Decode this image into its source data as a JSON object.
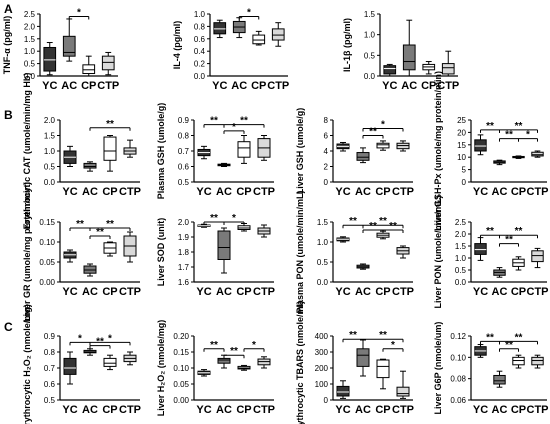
{
  "panel_labels": [
    "A",
    "B",
    "C"
  ],
  "colors": {
    "YC": "#333333",
    "AC": "#7a7a7a",
    "CP": "#ffffff",
    "CTP": "#d9d9d9",
    "outline": "#000000"
  },
  "chart_data": [
    {
      "type": "box",
      "group": "A",
      "ylabel": "TNF-α (pg/ml)",
      "categories": [
        "YC",
        "AC",
        "CP",
        "CTP"
      ],
      "ylim": [
        0,
        2.5
      ],
      "yticks": [
        "0.0",
        "0.5",
        "1.0",
        "1.5",
        "2.0",
        "2.5"
      ],
      "boxes": [
        {
          "min": 0.05,
          "q1": 0.2,
          "median": 0.65,
          "q3": 1.15,
          "max": 1.35
        },
        {
          "min": 0.6,
          "q1": 0.8,
          "median": 0.95,
          "q3": 1.6,
          "max": 2.3
        },
        {
          "min": 0.0,
          "q1": 0.1,
          "median": 0.25,
          "q3": 0.45,
          "max": 0.8
        },
        {
          "min": 0.05,
          "q1": 0.25,
          "median": 0.55,
          "q3": 0.8,
          "max": 0.95
        }
      ],
      "sig": [
        {
          "from": 1,
          "to": 2,
          "label": "*",
          "y": 2.4
        }
      ]
    },
    {
      "type": "box",
      "group": "A",
      "ylabel": "IL-4 (pg/ml)",
      "categories": [
        "YC",
        "AC",
        "CP",
        "CTP"
      ],
      "ylim": [
        0,
        1.0
      ],
      "yticks": [
        "0.0",
        "0.2",
        "0.4",
        "0.6",
        "0.8",
        "1.0"
      ],
      "boxes": [
        {
          "min": 0.62,
          "q1": 0.68,
          "median": 0.76,
          "q3": 0.86,
          "max": 0.9
        },
        {
          "min": 0.62,
          "q1": 0.7,
          "median": 0.79,
          "q3": 0.88,
          "max": 0.94
        },
        {
          "min": 0.5,
          "q1": 0.52,
          "median": 0.58,
          "q3": 0.66,
          "max": 0.72
        },
        {
          "min": 0.48,
          "q1": 0.58,
          "median": 0.66,
          "q3": 0.76,
          "max": 0.86
        }
      ],
      "sig": [
        {
          "from": 1,
          "to": 2,
          "label": "*",
          "y": 0.96
        }
      ]
    },
    {
      "type": "box",
      "group": "A",
      "ylabel": "IL-1β (pg/ml)",
      "categories": [
        "YC",
        "AC",
        "CP",
        "CTP"
      ],
      "ylim": [
        0,
        1.5
      ],
      "yticks": [
        "0.0",
        "0.5",
        "1.0",
        "1.5"
      ],
      "boxes": [
        {
          "min": 0.0,
          "q1": 0.05,
          "median": 0.18,
          "q3": 0.25,
          "max": 0.28
        },
        {
          "min": 0.0,
          "q1": 0.15,
          "median": 0.35,
          "q3": 0.75,
          "max": 1.35
        },
        {
          "min": 0.05,
          "q1": 0.15,
          "median": 0.22,
          "q3": 0.28,
          "max": 0.35
        },
        {
          "min": 0.0,
          "q1": 0.05,
          "median": 0.2,
          "q3": 0.3,
          "max": 0.6
        }
      ],
      "sig": []
    },
    {
      "type": "box",
      "group": "B",
      "ylabel": "Erythrocytic CAT (umole/min/mg Hb)",
      "categories": [
        "YC",
        "AC",
        "CP",
        "CTP"
      ],
      "ylim": [
        0,
        2.0
      ],
      "yticks": [
        "0.0",
        "0.5",
        "1.0",
        "1.5",
        "2.0"
      ],
      "boxes": [
        {
          "min": 0.5,
          "q1": 0.6,
          "median": 0.8,
          "q3": 1.0,
          "max": 1.15
        },
        {
          "min": 0.35,
          "q1": 0.45,
          "median": 0.5,
          "q3": 0.6,
          "max": 0.65
        },
        {
          "min": 0.35,
          "q1": 0.7,
          "median": 1.0,
          "q3": 1.45,
          "max": 1.5
        },
        {
          "min": 0.8,
          "q1": 0.9,
          "median": 1.0,
          "q3": 1.1,
          "max": 1.35
        }
      ],
      "sig": [
        {
          "from": 1,
          "to": 3,
          "label": "**",
          "y": 1.75
        }
      ]
    },
    {
      "type": "box",
      "group": "B",
      "ylabel": "Plasma GSH (umole/g)",
      "categories": [
        "YC",
        "AC",
        "CP",
        "CTP"
      ],
      "ylim": [
        0.5,
        0.9
      ],
      "yticks": [
        "0.5",
        "0.6",
        "0.7",
        "0.8",
        "0.9"
      ],
      "boxes": [
        {
          "min": 0.65,
          "q1": 0.67,
          "median": 0.69,
          "q3": 0.71,
          "max": 0.73
        },
        {
          "min": 0.6,
          "q1": 0.605,
          "median": 0.61,
          "q3": 0.615,
          "max": 0.62
        },
        {
          "min": 0.62,
          "q1": 0.66,
          "median": 0.72,
          "q3": 0.76,
          "max": 0.8
        },
        {
          "min": 0.64,
          "q1": 0.66,
          "median": 0.72,
          "q3": 0.78,
          "max": 0.8
        }
      ],
      "sig": [
        {
          "from": 0,
          "to": 1,
          "label": "**",
          "y": 0.87
        },
        {
          "from": 1,
          "to": 3,
          "label": "**",
          "y": 0.87
        },
        {
          "from": 1,
          "to": 2,
          "label": "*",
          "y": 0.83
        }
      ]
    },
    {
      "type": "box",
      "group": "B",
      "ylabel": "Liver GSH (umole/g)",
      "categories": [
        "YC",
        "AC",
        "CP",
        "CTP"
      ],
      "ylim": [
        0,
        8
      ],
      "yticks": [
        "0",
        "2",
        "4",
        "6",
        "8"
      ],
      "boxes": [
        {
          "min": 4.0,
          "q1": 4.3,
          "median": 4.6,
          "q3": 4.9,
          "max": 5.1
        },
        {
          "min": 2.5,
          "q1": 2.8,
          "median": 3.2,
          "q3": 3.8,
          "max": 4.4
        },
        {
          "min": 4.1,
          "q1": 4.4,
          "median": 4.8,
          "q3": 5.0,
          "max": 5.3
        },
        {
          "min": 4.0,
          "q1": 4.3,
          "median": 4.7,
          "q3": 5.0,
          "max": 5.3
        }
      ],
      "sig": [
        {
          "from": 1,
          "to": 3,
          "label": "*",
          "y": 6.9
        },
        {
          "from": 1,
          "to": 2,
          "label": "**",
          "y": 6.0
        }
      ]
    },
    {
      "type": "box",
      "group": "B",
      "ylabel": "Liver GSH-Px (umole/mg protein/min)",
      "categories": [
        "YC",
        "AC",
        "CP",
        "CTP"
      ],
      "ylim": [
        0,
        25
      ],
      "yticks": [
        "0",
        "5",
        "10",
        "15",
        "20",
        "25"
      ],
      "boxes": [
        {
          "min": 11,
          "q1": 12.5,
          "median": 14.5,
          "q3": 17,
          "max": 19
        },
        {
          "min": 7,
          "q1": 7.6,
          "median": 8,
          "q3": 8.5,
          "max": 8.8
        },
        {
          "min": 9.5,
          "q1": 9.8,
          "median": 10,
          "q3": 10.3,
          "max": 10.5
        },
        {
          "min": 10,
          "q1": 10.5,
          "median": 11,
          "q3": 12,
          "max": 12.5
        }
      ],
      "sig": [
        {
          "from": 0,
          "to": 1,
          "label": "**",
          "y": 21
        },
        {
          "from": 1,
          "to": 3,
          "label": "**",
          "y": 21
        },
        {
          "from": 1,
          "to": 2,
          "label": "**",
          "y": 17.5
        },
        {
          "from": 2,
          "to": 3,
          "label": "*",
          "y": 17.5
        }
      ]
    },
    {
      "type": "box",
      "group": "B",
      "ylabel": "Liver GR (umole/mg protein/min)",
      "categories": [
        "YC",
        "AC",
        "CP",
        "CTP"
      ],
      "ylim": [
        0,
        0.15
      ],
      "yticks": [
        "0.00",
        "0.05",
        "0.10",
        "0.15"
      ],
      "boxes": [
        {
          "min": 0.05,
          "q1": 0.06,
          "median": 0.068,
          "q3": 0.075,
          "max": 0.08
        },
        {
          "min": 0.015,
          "q1": 0.022,
          "median": 0.03,
          "q3": 0.04,
          "max": 0.045
        },
        {
          "min": 0.065,
          "q1": 0.072,
          "median": 0.085,
          "q3": 0.098,
          "max": 0.1
        },
        {
          "min": 0.05,
          "q1": 0.065,
          "median": 0.09,
          "q3": 0.115,
          "max": 0.125
        }
      ],
      "sig": [
        {
          "from": 0,
          "to": 1,
          "label": "**",
          "y": 0.135
        },
        {
          "from": 1,
          "to": 3,
          "label": "**",
          "y": 0.135
        },
        {
          "from": 1,
          "to": 2,
          "label": "**",
          "y": 0.115
        }
      ]
    },
    {
      "type": "box",
      "group": "B",
      "ylabel": "Liver SOD (unit)",
      "categories": [
        "YC",
        "AC",
        "CP",
        "CTP"
      ],
      "ylim": [
        1.6,
        2.0
      ],
      "yticks": [
        "1.6",
        "1.7",
        "1.8",
        "1.9",
        "2.0"
      ],
      "boxes": [
        {
          "min": 1.965,
          "q1": 1.97,
          "median": 1.975,
          "q3": 1.98,
          "max": 1.985
        },
        {
          "min": 1.66,
          "q1": 1.75,
          "median": 1.83,
          "q3": 1.94,
          "max": 1.96
        },
        {
          "min": 1.94,
          "q1": 1.95,
          "median": 1.96,
          "q3": 1.975,
          "max": 1.99
        },
        {
          "min": 1.9,
          "q1": 1.92,
          "median": 1.94,
          "q3": 1.96,
          "max": 1.98
        }
      ],
      "sig": [
        {
          "from": 0,
          "to": 1,
          "label": "**",
          "y": 2.0
        },
        {
          "from": 1,
          "to": 2,
          "label": "*",
          "y": 2.0
        }
      ]
    },
    {
      "type": "box",
      "group": "B",
      "ylabel": "Plasma PON (umole/min/mL)",
      "categories": [
        "YC",
        "AC",
        "CP",
        "CTP"
      ],
      "ylim": [
        0,
        1.5
      ],
      "yticks": [
        "0.0",
        "0.5",
        "1.0",
        "1.5"
      ],
      "boxes": [
        {
          "min": 1.0,
          "q1": 1.03,
          "median": 1.07,
          "q3": 1.1,
          "max": 1.13
        },
        {
          "min": 0.32,
          "q1": 0.35,
          "median": 0.38,
          "q3": 0.42,
          "max": 0.45
        },
        {
          "min": 1.08,
          "q1": 1.12,
          "median": 1.17,
          "q3": 1.22,
          "max": 1.27
        },
        {
          "min": 0.6,
          "q1": 0.7,
          "median": 0.78,
          "q3": 0.86,
          "max": 0.9
        }
      ],
      "sig": [
        {
          "from": 0,
          "to": 1,
          "label": "**",
          "y": 1.42
        },
        {
          "from": 1,
          "to": 3,
          "label": "**",
          "y": 1.42
        },
        {
          "from": 1,
          "to": 2,
          "label": "**",
          "y": 1.3
        },
        {
          "from": 2,
          "to": 3,
          "label": "**",
          "y": 1.3
        }
      ]
    },
    {
      "type": "box",
      "group": "B",
      "ylabel": "Liver PON (umole/min/mL)",
      "categories": [
        "YC",
        "AC",
        "CP",
        "CTP"
      ],
      "ylim": [
        0,
        2.5
      ],
      "yticks": [
        "0.0",
        "0.5",
        "1.0",
        "1.5",
        "2.0",
        "2.5"
      ],
      "boxes": [
        {
          "min": 0.9,
          "q1": 1.15,
          "median": 1.35,
          "q3": 1.6,
          "max": 1.85
        },
        {
          "min": 0.2,
          "q1": 0.28,
          "median": 0.4,
          "q3": 0.5,
          "max": 0.6
        },
        {
          "min": 0.5,
          "q1": 0.65,
          "median": 0.8,
          "q3": 0.95,
          "max": 1.05
        },
        {
          "min": 0.6,
          "q1": 0.85,
          "median": 1.1,
          "q3": 1.3,
          "max": 1.4
        }
      ],
      "sig": [
        {
          "from": 0,
          "to": 1,
          "label": "**",
          "y": 1.95
        },
        {
          "from": 1,
          "to": 3,
          "label": "**",
          "y": 1.95
        },
        {
          "from": 1,
          "to": 2,
          "label": "**",
          "y": 1.6
        }
      ]
    },
    {
      "type": "box",
      "group": "C",
      "ylabel": "Erythrocytic H₂O₂ (nmole/mg)",
      "categories": [
        "YC",
        "AC",
        "CP",
        "CTP"
      ],
      "ylim": [
        0.5,
        0.9
      ],
      "yticks": [
        "0.5",
        "0.6",
        "0.7",
        "0.8",
        "0.9"
      ],
      "boxes": [
        {
          "min": 0.6,
          "q1": 0.66,
          "median": 0.7,
          "q3": 0.76,
          "max": 0.8
        },
        {
          "min": 0.78,
          "q1": 0.795,
          "median": 0.8,
          "q3": 0.81,
          "max": 0.82
        },
        {
          "min": 0.69,
          "q1": 0.71,
          "median": 0.73,
          "q3": 0.76,
          "max": 0.78
        },
        {
          "min": 0.72,
          "q1": 0.74,
          "median": 0.76,
          "q3": 0.78,
          "max": 0.8
        }
      ],
      "sig": [
        {
          "from": 0,
          "to": 1,
          "label": "*",
          "y": 0.86
        },
        {
          "from": 1,
          "to": 3,
          "label": "*",
          "y": 0.86
        },
        {
          "from": 1,
          "to": 2,
          "label": "**",
          "y": 0.84
        }
      ]
    },
    {
      "type": "box",
      "group": "C",
      "ylabel": "Liver H₂O₂ (nmole/mg)",
      "categories": [
        "YC",
        "AC",
        "CP",
        "CTP"
      ],
      "ylim": [
        0,
        0.2
      ],
      "yticks": [
        "0.00",
        "0.05",
        "0.10",
        "0.15",
        "0.20"
      ],
      "boxes": [
        {
          "min": 0.075,
          "q1": 0.08,
          "median": 0.085,
          "q3": 0.09,
          "max": 0.095
        },
        {
          "min": 0.1,
          "q1": 0.115,
          "median": 0.125,
          "q3": 0.13,
          "max": 0.14
        },
        {
          "min": 0.093,
          "q1": 0.097,
          "median": 0.1,
          "q3": 0.105,
          "max": 0.108
        },
        {
          "min": 0.1,
          "q1": 0.11,
          "median": 0.12,
          "q3": 0.128,
          "max": 0.135
        }
      ],
      "sig": [
        {
          "from": 0,
          "to": 1,
          "label": "**",
          "y": 0.16
        },
        {
          "from": 2,
          "to": 3,
          "label": "*",
          "y": 0.16
        },
        {
          "from": 1,
          "to": 2,
          "label": "**",
          "y": 0.14
        }
      ]
    },
    {
      "type": "box",
      "group": "C",
      "ylabel": "Erythrocytic TBARS (nmole/ml)",
      "categories": [
        "YC",
        "AC",
        "CP",
        "CTP"
      ],
      "ylim": [
        0,
        400
      ],
      "yticks": [
        "0",
        "100",
        "200",
        "300",
        "400"
      ],
      "boxes": [
        {
          "min": 10,
          "q1": 25,
          "median": 50,
          "q3": 85,
          "max": 120
        },
        {
          "min": 150,
          "q1": 210,
          "median": 280,
          "q3": 320,
          "max": 375
        },
        {
          "min": 70,
          "q1": 140,
          "median": 210,
          "q3": 250,
          "max": 255
        },
        {
          "min": 10,
          "q1": 25,
          "median": 40,
          "q3": 80,
          "max": 180
        }
      ],
      "sig": [
        {
          "from": 0,
          "to": 1,
          "label": "**",
          "y": 380
        },
        {
          "from": 1,
          "to": 3,
          "label": "**",
          "y": 380
        },
        {
          "from": 2,
          "to": 3,
          "label": "*",
          "y": 320
        }
      ]
    },
    {
      "type": "box",
      "group": "C",
      "ylabel": "Liver G6P (nmole/um)",
      "categories": [
        "YC",
        "AC",
        "CP",
        "CTP"
      ],
      "ylim": [
        0.06,
        0.12
      ],
      "yticks": [
        "0.06",
        "0.08",
        "0.10",
        "0.12"
      ],
      "boxes": [
        {
          "min": 0.1,
          "q1": 0.102,
          "median": 0.106,
          "q3": 0.11,
          "max": 0.112
        },
        {
          "min": 0.072,
          "q1": 0.075,
          "median": 0.078,
          "q3": 0.083,
          "max": 0.087
        },
        {
          "min": 0.09,
          "q1": 0.093,
          "median": 0.097,
          "q3": 0.1,
          "max": 0.102
        },
        {
          "min": 0.09,
          "q1": 0.093,
          "median": 0.097,
          "q3": 0.1,
          "max": 0.102
        }
      ],
      "sig": [
        {
          "from": 0,
          "to": 1,
          "label": "**",
          "y": 0.115
        },
        {
          "from": 1,
          "to": 3,
          "label": "**",
          "y": 0.115
        },
        {
          "from": 1,
          "to": 2,
          "label": "**",
          "y": 0.108
        }
      ]
    }
  ]
}
